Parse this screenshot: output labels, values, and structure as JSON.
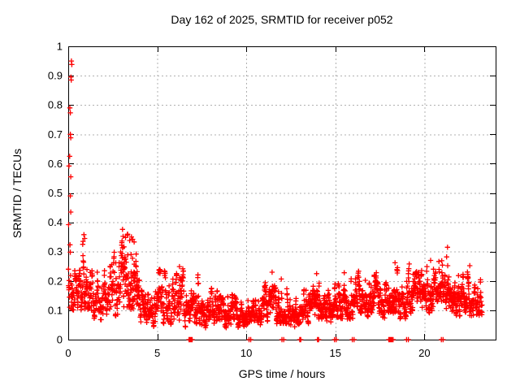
{
  "window": {
    "background": "#ffffff"
  },
  "chart_data": {
    "type": "scatter",
    "title": "Day 162 of 2025, SRMTID for receiver p052",
    "xlabel": "GPS time / hours",
    "ylabel": "SRMTID / TECUs",
    "xlim": [
      0,
      24
    ],
    "ylim": [
      0,
      1
    ],
    "xticks": [
      {
        "v": 0,
        "label": "0"
      },
      {
        "v": 5,
        "label": "5"
      },
      {
        "v": 10,
        "label": "10"
      },
      {
        "v": 15,
        "label": "15"
      },
      {
        "v": 20,
        "label": "20"
      }
    ],
    "yticks": [
      {
        "v": 0.0,
        "label": "0"
      },
      {
        "v": 0.1,
        "label": "0.1"
      },
      {
        "v": 0.2,
        "label": "0.2"
      },
      {
        "v": 0.3,
        "label": "0.3"
      },
      {
        "v": 0.4,
        "label": "0.4"
      },
      {
        "v": 0.5,
        "label": "0.5"
      },
      {
        "v": 0.6,
        "label": "0.6"
      },
      {
        "v": 0.7,
        "label": "0.7"
      },
      {
        "v": 0.8,
        "label": "0.8"
      },
      {
        "v": 0.9,
        "label": "0.9"
      },
      {
        "v": 1.0,
        "label": "1"
      }
    ],
    "grid": true,
    "legend_position": "none",
    "marker": {
      "glyph": "plus",
      "color": "#ff0000",
      "size": 7
    },
    "grid_color": "#b0b0b0",
    "axis_color": "#000000",
    "series_name": "SRMTID",
    "outlier_points": [
      [
        0.18,
        0.95
      ],
      [
        0.2,
        0.938
      ],
      [
        0.15,
        0.895
      ],
      [
        0.17,
        0.885
      ],
      [
        0.09,
        0.79
      ],
      [
        0.12,
        0.773
      ],
      [
        0.12,
        0.7
      ],
      [
        0.14,
        0.688
      ],
      [
        0.08,
        0.625
      ],
      [
        0.04,
        0.592
      ],
      [
        0.14,
        0.555
      ],
      [
        0.12,
        0.49
      ],
      [
        0.14,
        0.435
      ],
      [
        0.02,
        0.392
      ],
      [
        0.88,
        0.358
      ],
      [
        0.92,
        0.345
      ],
      [
        0.83,
        0.335
      ],
      [
        3.05,
        0.376
      ],
      [
        3.08,
        0.352
      ],
      [
        3.45,
        0.338
      ],
      [
        3.55,
        0.35
      ],
      [
        3.62,
        0.342
      ],
      [
        3.7,
        0.333
      ],
      [
        11.45,
        0.23
      ],
      [
        13.95,
        0.225
      ],
      [
        15.5,
        0.228
      ],
      [
        18.35,
        0.262
      ],
      [
        19.15,
        0.258
      ],
      [
        20.35,
        0.27
      ],
      [
        21.25,
        0.282
      ],
      [
        21.3,
        0.315
      ],
      [
        22.55,
        0.252
      ]
    ],
    "zero_points": [
      6.78,
      6.84,
      6.9,
      6.96,
      10.15,
      10.25,
      12.0,
      12.1,
      13.0,
      13.06,
      14.0,
      14.06,
      14.95,
      15.05,
      15.95,
      16.05,
      18.0,
      18.06,
      18.12,
      18.18,
      18.24,
      19.0,
      19.1,
      20.95,
      21.05
    ],
    "band_segments": [
      [
        0.0,
        0.3,
        0.1,
        0.33,
        28
      ],
      [
        0.3,
        0.6,
        0.09,
        0.25,
        30
      ],
      [
        0.6,
        1.2,
        0.1,
        0.33,
        60
      ],
      [
        1.2,
        1.8,
        0.07,
        0.24,
        55
      ],
      [
        1.8,
        2.4,
        0.06,
        0.27,
        55
      ],
      [
        2.4,
        3.0,
        0.08,
        0.3,
        60
      ],
      [
        3.0,
        3.5,
        0.11,
        0.36,
        62
      ],
      [
        3.5,
        4.0,
        0.1,
        0.345,
        62
      ],
      [
        4.0,
        4.5,
        0.05,
        0.2,
        50
      ],
      [
        4.5,
        5.0,
        0.04,
        0.17,
        48
      ],
      [
        5.0,
        5.5,
        0.05,
        0.24,
        52
      ],
      [
        5.5,
        6.0,
        0.05,
        0.215,
        50
      ],
      [
        6.0,
        6.5,
        0.06,
        0.265,
        52
      ],
      [
        6.5,
        7.0,
        0.04,
        0.195,
        48
      ],
      [
        7.0,
        7.5,
        0.05,
        0.23,
        50
      ],
      [
        7.5,
        8.0,
        0.04,
        0.16,
        48
      ],
      [
        8.0,
        8.5,
        0.05,
        0.175,
        48
      ],
      [
        8.5,
        9.0,
        0.04,
        0.15,
        48
      ],
      [
        9.0,
        9.5,
        0.05,
        0.16,
        48
      ],
      [
        9.5,
        10.0,
        0.04,
        0.15,
        48
      ],
      [
        10.0,
        10.5,
        0.05,
        0.155,
        48
      ],
      [
        10.5,
        11.0,
        0.04,
        0.16,
        48
      ],
      [
        11.0,
        11.5,
        0.06,
        0.21,
        52
      ],
      [
        11.5,
        12.0,
        0.05,
        0.22,
        52
      ],
      [
        12.0,
        12.5,
        0.05,
        0.175,
        48
      ],
      [
        12.5,
        13.0,
        0.04,
        0.15,
        48
      ],
      [
        13.0,
        13.5,
        0.05,
        0.175,
        48
      ],
      [
        13.5,
        14.0,
        0.07,
        0.2,
        52
      ],
      [
        14.0,
        14.5,
        0.07,
        0.215,
        52
      ],
      [
        14.5,
        15.0,
        0.06,
        0.19,
        52
      ],
      [
        15.0,
        15.5,
        0.07,
        0.215,
        52
      ],
      [
        15.5,
        16.0,
        0.07,
        0.23,
        52
      ],
      [
        16.0,
        16.5,
        0.09,
        0.24,
        55
      ],
      [
        16.5,
        17.0,
        0.07,
        0.21,
        52
      ],
      [
        17.0,
        17.5,
        0.09,
        0.24,
        55
      ],
      [
        17.5,
        18.0,
        0.07,
        0.21,
        52
      ],
      [
        18.0,
        18.5,
        0.09,
        0.255,
        55
      ],
      [
        18.5,
        19.0,
        0.07,
        0.22,
        52
      ],
      [
        19.0,
        19.5,
        0.09,
        0.265,
        55
      ],
      [
        19.5,
        20.0,
        0.09,
        0.24,
        55
      ],
      [
        20.0,
        20.5,
        0.09,
        0.255,
        55
      ],
      [
        20.5,
        21.0,
        0.08,
        0.275,
        55
      ],
      [
        21.0,
        21.5,
        0.09,
        0.255,
        55
      ],
      [
        21.5,
        22.0,
        0.08,
        0.24,
        55
      ],
      [
        22.0,
        22.5,
        0.09,
        0.24,
        56
      ],
      [
        22.5,
        23.25,
        0.08,
        0.215,
        66
      ]
    ]
  }
}
